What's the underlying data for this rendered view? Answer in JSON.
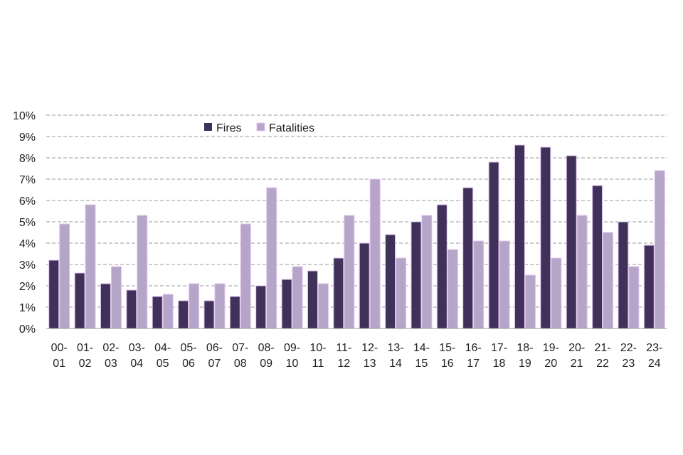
{
  "chart_data": {
    "type": "bar",
    "categories": [
      [
        "00-",
        "01"
      ],
      [
        "01-",
        "02"
      ],
      [
        "02-",
        "03"
      ],
      [
        "03-",
        "04"
      ],
      [
        "04-",
        "05"
      ],
      [
        "05-",
        "06"
      ],
      [
        "06-",
        "07"
      ],
      [
        "07-",
        "08"
      ],
      [
        "08-",
        "09"
      ],
      [
        "09-",
        "10"
      ],
      [
        "10-",
        "11"
      ],
      [
        "11-",
        "12"
      ],
      [
        "12-",
        "13"
      ],
      [
        "13-",
        "14"
      ],
      [
        "14-",
        "15"
      ],
      [
        "15-",
        "16"
      ],
      [
        "16-",
        "17"
      ],
      [
        "17-",
        "18"
      ],
      [
        "18-",
        "19"
      ],
      [
        "19-",
        "20"
      ],
      [
        "20-",
        "21"
      ],
      [
        "21-",
        "22"
      ],
      [
        "22-",
        "23"
      ],
      [
        "23-",
        "24"
      ]
    ],
    "series": [
      {
        "name": "Fires",
        "color": "#3f3159",
        "values": [
          3.2,
          2.6,
          2.1,
          1.8,
          1.5,
          1.3,
          1.3,
          1.5,
          2.0,
          2.3,
          2.7,
          3.3,
          4.0,
          4.4,
          5.0,
          5.8,
          6.6,
          7.8,
          8.6,
          8.5,
          8.1,
          6.7,
          5.0,
          3.9
        ]
      },
      {
        "name": "Fatalities",
        "color": "#b5a5c9",
        "values": [
          4.9,
          5.8,
          2.9,
          5.3,
          1.6,
          2.1,
          2.1,
          4.9,
          6.6,
          2.9,
          2.1,
          5.3,
          7.0,
          3.3,
          5.3,
          3.7,
          4.1,
          4.1,
          2.5,
          3.3,
          5.3,
          4.5,
          2.9,
          7.4
        ]
      }
    ],
    "y_ticks": [
      "0%",
      "1%",
      "2%",
      "3%",
      "4%",
      "5%",
      "6%",
      "7%",
      "8%",
      "9%",
      "10%"
    ],
    "ylim": [
      0,
      10
    ],
    "unit": "%",
    "grid": true,
    "grid_color": "#9a9a9a",
    "bar_outline_color": "#e3c4ec",
    "legend_position": "top-left-inside"
  }
}
